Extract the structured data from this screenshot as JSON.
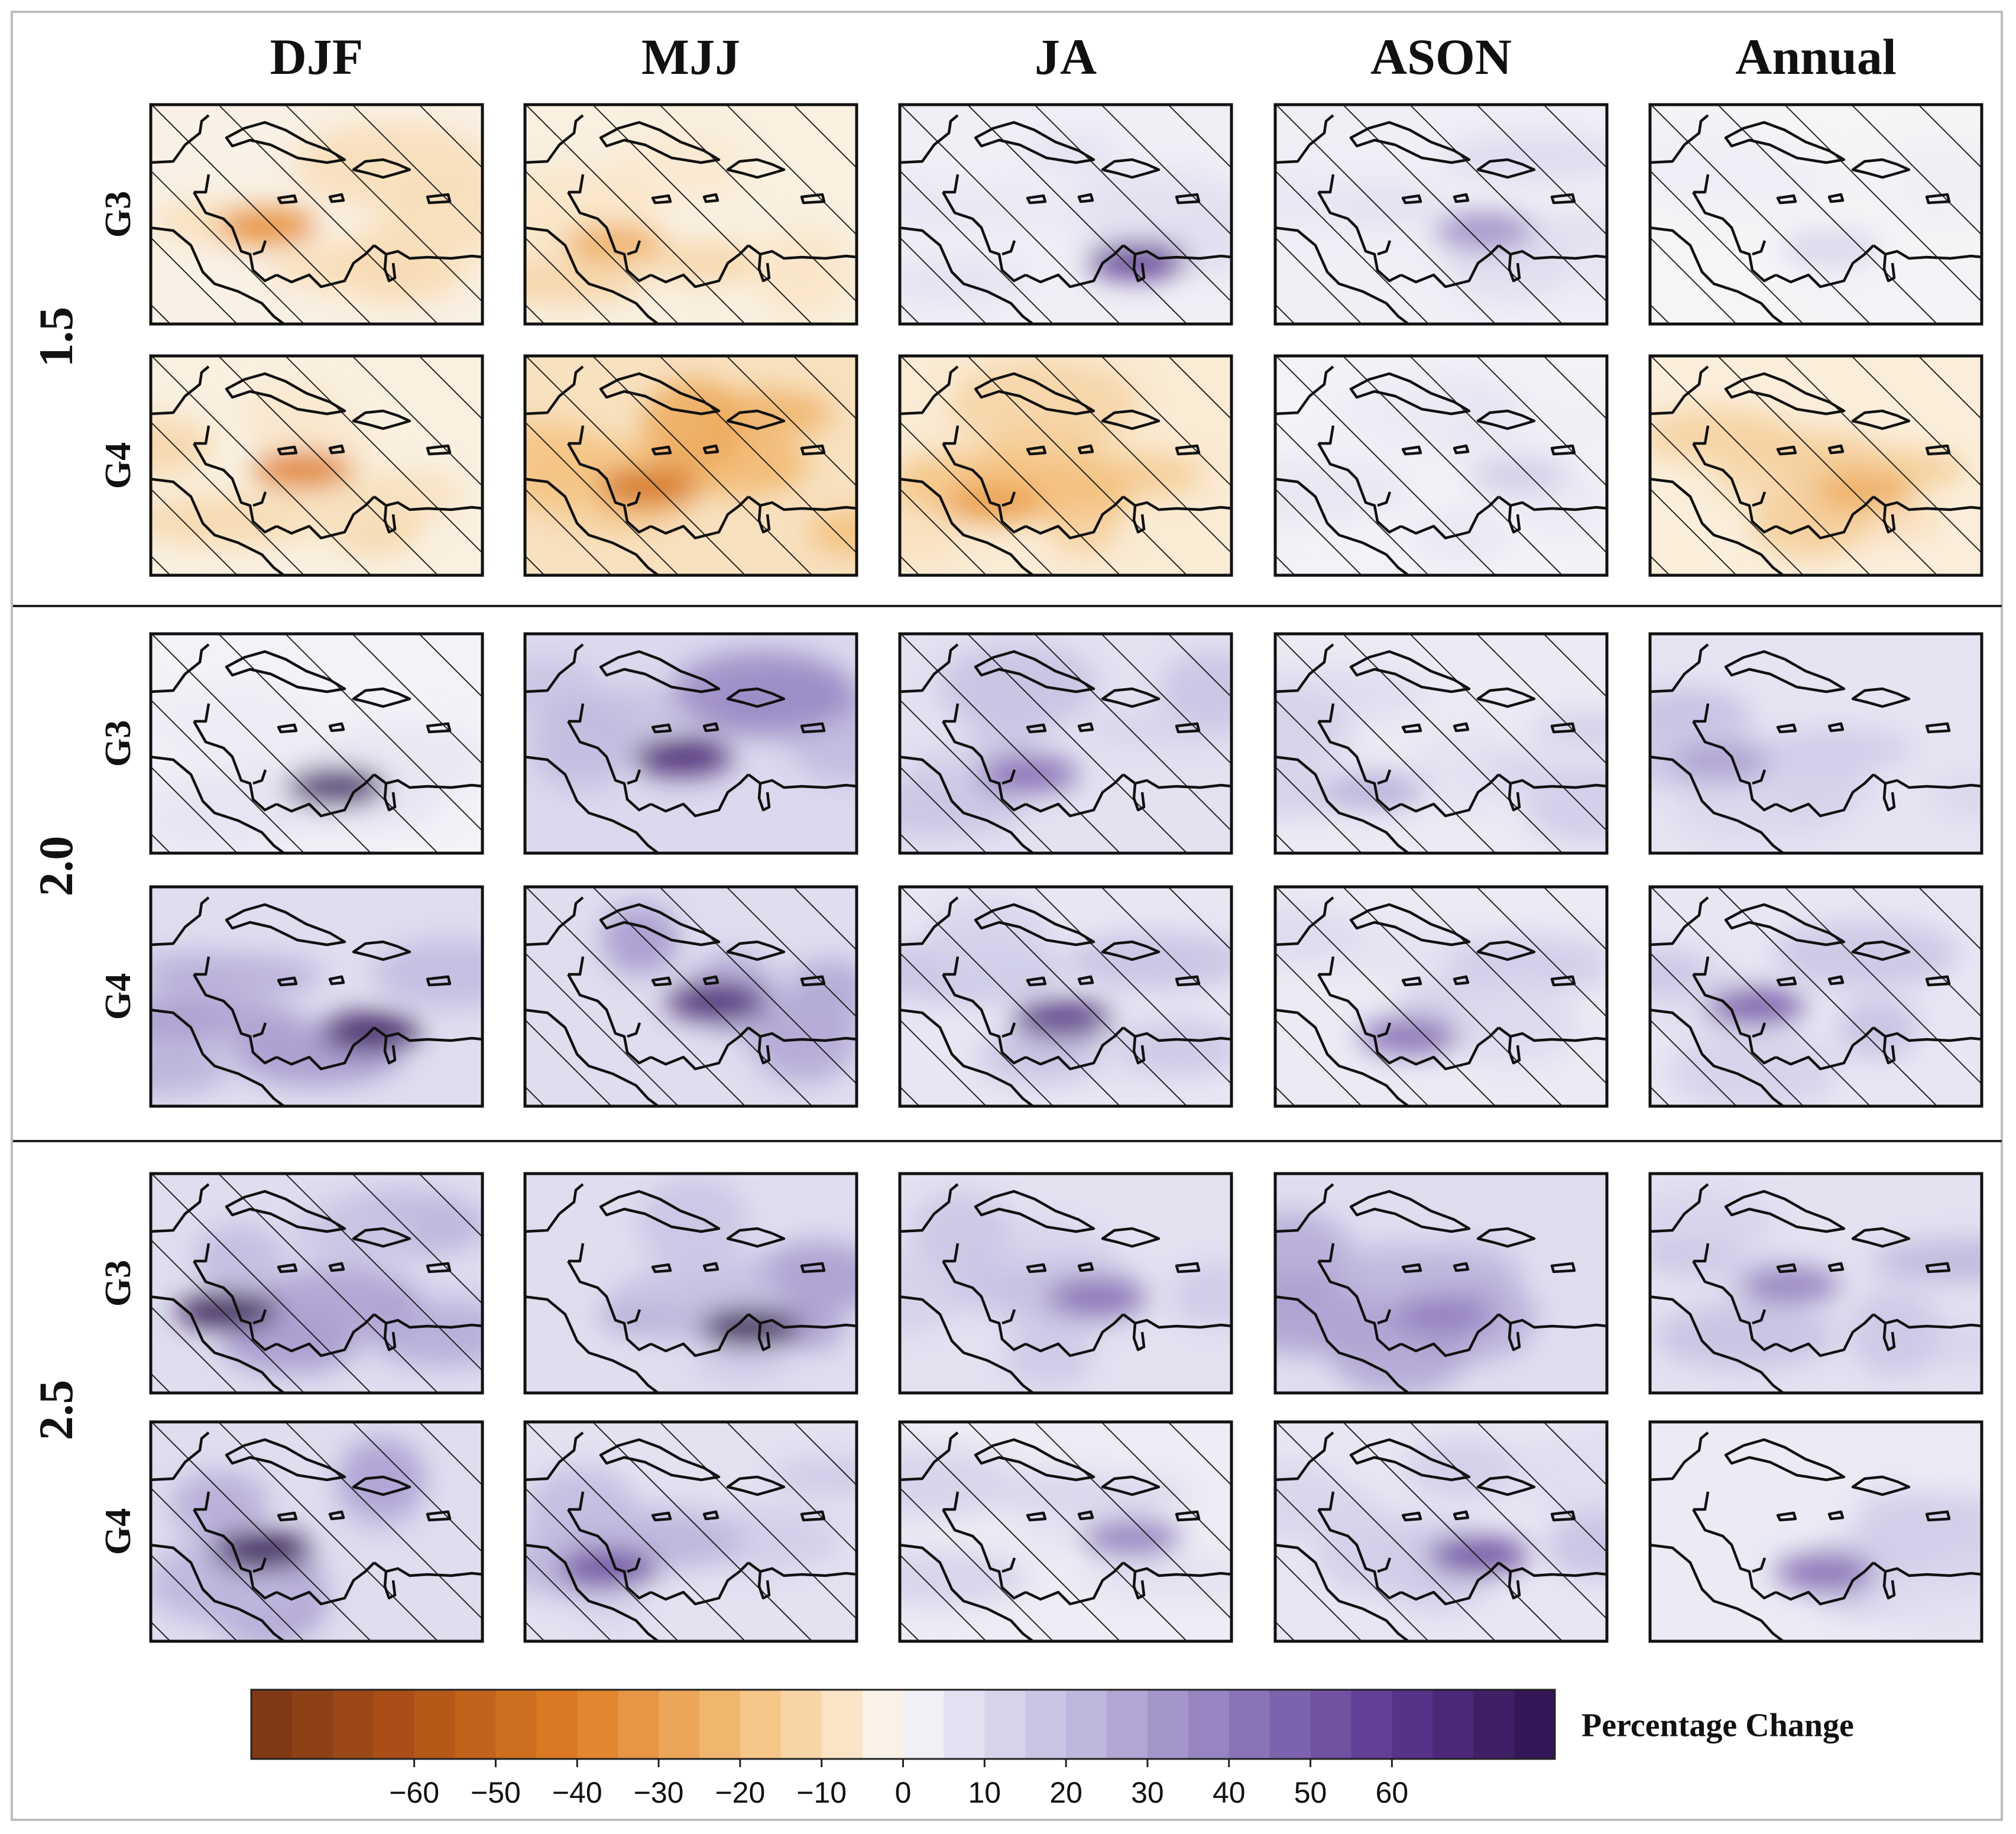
{
  "figure": {
    "type": "heatmap",
    "columns": [
      "DJF",
      "MJJ",
      "JA",
      "ASON",
      "Annual"
    ],
    "warming_levels": [
      "1.5",
      "2.0",
      "2.5"
    ],
    "scenarios": [
      "G3",
      "G4"
    ],
    "colorbar": {
      "label": "Percentage Change",
      "ticks": [
        "−60",
        "−50",
        "−40",
        "−30",
        "−20",
        "−10",
        "0",
        "10",
        "20",
        "30",
        "40",
        "50",
        "60"
      ],
      "tick_values": [
        -60,
        -50,
        -40,
        -30,
        -20,
        -10,
        0,
        10,
        20,
        30,
        40,
        50,
        60
      ],
      "range": [
        -80,
        80
      ],
      "n_bins": 32
    }
  },
  "chart_data": {
    "type": "heatmap",
    "title": "",
    "legend_label": "Percentage Change",
    "value_range": [
      -80,
      80
    ],
    "panels": [
      {
        "level": "1.5",
        "scenario": "G3",
        "column": "DJF",
        "dominant_change": -8,
        "extreme_change": -35,
        "hatched": true
      },
      {
        "level": "1.5",
        "scenario": "G3",
        "column": "MJJ",
        "dominant_change": -10,
        "extreme_change": -25,
        "hatched": true
      },
      {
        "level": "1.5",
        "scenario": "G3",
        "column": "JA",
        "dominant_change": 8,
        "extreme_change": 60,
        "hatched": true
      },
      {
        "level": "1.5",
        "scenario": "G3",
        "column": "ASON",
        "dominant_change": 8,
        "extreme_change": 35,
        "hatched": true
      },
      {
        "level": "1.5",
        "scenario": "G3",
        "column": "Annual",
        "dominant_change": 3,
        "extreme_change": 12,
        "hatched": true
      },
      {
        "level": "1.5",
        "scenario": "G4",
        "column": "DJF",
        "dominant_change": -10,
        "extreme_change": -40,
        "hatched": true
      },
      {
        "level": "1.5",
        "scenario": "G4",
        "column": "MJJ",
        "dominant_change": -25,
        "extreme_change": -45,
        "hatched": true
      },
      {
        "level": "1.5",
        "scenario": "G4",
        "column": "JA",
        "dominant_change": -15,
        "extreme_change": -30,
        "hatched": true
      },
      {
        "level": "1.5",
        "scenario": "G4",
        "column": "ASON",
        "dominant_change": 5,
        "extreme_change": 15,
        "hatched": true
      },
      {
        "level": "1.5",
        "scenario": "G4",
        "column": "Annual",
        "dominant_change": -12,
        "extreme_change": -25,
        "hatched": true
      },
      {
        "level": "2.0",
        "scenario": "G3",
        "column": "DJF",
        "dominant_change": 5,
        "extreme_change": 75,
        "hatched": true
      },
      {
        "level": "2.0",
        "scenario": "G3",
        "column": "MJJ",
        "dominant_change": 30,
        "extreme_change": 70,
        "hatched": false
      },
      {
        "level": "2.0",
        "scenario": "G3",
        "column": "JA",
        "dominant_change": 20,
        "extreme_change": 45,
        "hatched": true
      },
      {
        "level": "2.0",
        "scenario": "G3",
        "column": "ASON",
        "dominant_change": 12,
        "extreme_change": 25,
        "hatched": true
      },
      {
        "level": "2.0",
        "scenario": "G3",
        "column": "Annual",
        "dominant_change": 18,
        "extreme_change": 30,
        "hatched": false
      },
      {
        "level": "2.0",
        "scenario": "G4",
        "column": "DJF",
        "dominant_change": 25,
        "extreme_change": 75,
        "hatched": false
      },
      {
        "level": "2.0",
        "scenario": "G4",
        "column": "MJJ",
        "dominant_change": 25,
        "extreme_change": 70,
        "hatched": true
      },
      {
        "level": "2.0",
        "scenario": "G4",
        "column": "JA",
        "dominant_change": 15,
        "extreme_change": 65,
        "hatched": true
      },
      {
        "level": "2.0",
        "scenario": "G4",
        "column": "ASON",
        "dominant_change": 12,
        "extreme_change": 45,
        "hatched": true
      },
      {
        "level": "2.0",
        "scenario": "G4",
        "column": "Annual",
        "dominant_change": 15,
        "extreme_change": 50,
        "hatched": true
      },
      {
        "level": "2.5",
        "scenario": "G3",
        "column": "DJF",
        "dominant_change": 25,
        "extreme_change": 80,
        "hatched": true
      },
      {
        "level": "2.5",
        "scenario": "G3",
        "column": "MJJ",
        "dominant_change": 25,
        "extreme_change": 80,
        "hatched": false
      },
      {
        "level": "2.5",
        "scenario": "G3",
        "column": "JA",
        "dominant_change": 20,
        "extreme_change": 45,
        "hatched": false
      },
      {
        "level": "2.5",
        "scenario": "G3",
        "column": "ASON",
        "dominant_change": 25,
        "extreme_change": 40,
        "hatched": false
      },
      {
        "level": "2.5",
        "scenario": "G3",
        "column": "Annual",
        "dominant_change": 20,
        "extreme_change": 40,
        "hatched": false
      },
      {
        "level": "2.5",
        "scenario": "G4",
        "column": "DJF",
        "dominant_change": 25,
        "extreme_change": 80,
        "hatched": true
      },
      {
        "level": "2.5",
        "scenario": "G4",
        "column": "MJJ",
        "dominant_change": 20,
        "extreme_change": 55,
        "hatched": true
      },
      {
        "level": "2.5",
        "scenario": "G4",
        "column": "JA",
        "dominant_change": 10,
        "extreme_change": 40,
        "hatched": true
      },
      {
        "level": "2.5",
        "scenario": "G4",
        "column": "ASON",
        "dominant_change": 15,
        "extreme_change": 55,
        "hatched": true
      },
      {
        "level": "2.5",
        "scenario": "G4",
        "column": "Annual",
        "dominant_change": 12,
        "extreme_change": 45,
        "hatched": false
      }
    ]
  }
}
